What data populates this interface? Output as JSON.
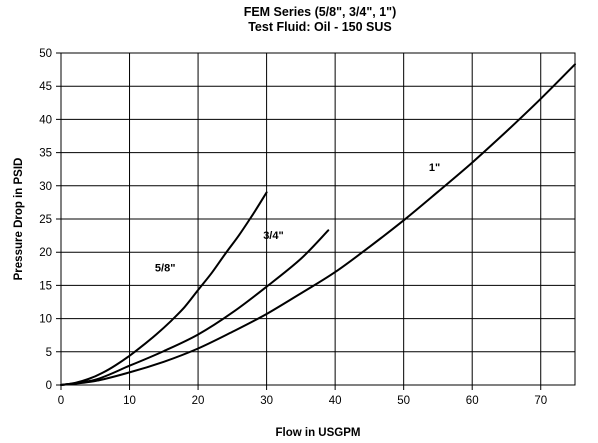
{
  "chart_data": {
    "type": "line",
    "title": "FEM Series (5/8\", 3/4\", 1\")",
    "subtitle": "Test Fluid: Oil - 150 SUS",
    "xlabel": "Flow in USGPM",
    "ylabel": "Pressure Drop in PSID",
    "xlim": [
      0,
      75
    ],
    "ylim": [
      0,
      50
    ],
    "xticks": [
      0,
      10,
      20,
      30,
      40,
      50,
      60,
      70
    ],
    "yticks": [
      0,
      5,
      10,
      15,
      20,
      25,
      30,
      35,
      40,
      45,
      50
    ],
    "grid": true,
    "legend": "none",
    "series": [
      {
        "name": "5/8\"",
        "x": [
          0,
          2,
          4,
          6,
          8,
          10,
          12,
          14,
          16,
          18,
          20,
          22,
          24,
          26,
          28,
          30
        ],
        "y": [
          0,
          0.3,
          0.9,
          1.8,
          3.0,
          4.4,
          6.0,
          7.7,
          9.6,
          11.7,
          14.3,
          16.9,
          19.8,
          22.6,
          25.7,
          29.0
        ]
      },
      {
        "name": "3/4\"",
        "x": [
          0,
          5,
          10,
          15,
          20,
          25,
          30,
          35,
          39
        ],
        "y": [
          0,
          0.8,
          2.9,
          5.1,
          7.6,
          10.9,
          14.8,
          19.0,
          23.3
        ]
      },
      {
        "name": "1\"",
        "x": [
          0,
          5,
          10,
          15,
          20,
          25,
          30,
          35,
          40,
          45,
          50,
          55,
          60,
          65,
          70,
          75
        ],
        "y": [
          0,
          0.6,
          1.9,
          3.5,
          5.5,
          8.0,
          10.7,
          13.8,
          17.0,
          20.8,
          24.8,
          29.1,
          33.5,
          38.2,
          43.1,
          48.3
        ]
      }
    ],
    "series_labels": [
      {
        "text": "5/8\"",
        "x": 15.2,
        "y": 17.1
      },
      {
        "text": "3/4\"",
        "x": 31.0,
        "y": 22.0
      },
      {
        "text": "1\"",
        "x": 54.5,
        "y": 32.2
      }
    ]
  }
}
